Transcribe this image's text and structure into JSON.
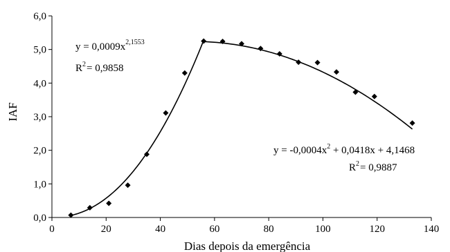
{
  "chart_data": {
    "type": "scatter",
    "xlabel": "Dias depois da emergência",
    "ylabel": "IAF",
    "xlim": [
      0,
      140
    ],
    "ylim": [
      0,
      6
    ],
    "x_ticks": [
      "0",
      "20",
      "40",
      "60",
      "80",
      "100",
      "120",
      "140"
    ],
    "y_ticks": [
      "0,0",
      "1,0",
      "2,0",
      "3,0",
      "4,0",
      "5,0",
      "6,0"
    ],
    "grid": false,
    "legend": "none",
    "points": [
      {
        "x": 7,
        "y": 0.07
      },
      {
        "x": 14,
        "y": 0.29
      },
      {
        "x": 21,
        "y": 0.42
      },
      {
        "x": 28,
        "y": 0.96
      },
      {
        "x": 35,
        "y": 1.88
      },
      {
        "x": 42,
        "y": 3.11
      },
      {
        "x": 49,
        "y": 4.3
      },
      {
        "x": 56,
        "y": 5.25
      },
      {
        "x": 63,
        "y": 5.24
      },
      {
        "x": 70,
        "y": 5.17
      },
      {
        "x": 77,
        "y": 5.03
      },
      {
        "x": 84,
        "y": 4.87
      },
      {
        "x": 91,
        "y": 4.62
      },
      {
        "x": 98,
        "y": 4.61
      },
      {
        "x": 105,
        "y": 4.33
      },
      {
        "x": 112,
        "y": 3.73
      },
      {
        "x": 119,
        "y": 3.6
      },
      {
        "x": 133,
        "y": 2.81
      }
    ],
    "fits": [
      {
        "kind": "power",
        "a": 0.0009,
        "b": 2.1553,
        "x_range": [
          7,
          56
        ],
        "equation_base": "y = 0,0009x",
        "equation_exp": "2,1553",
        "r2_prefix": "R",
        "r2_exp": "2",
        "r2_value": "= 0,9858"
      },
      {
        "kind": "quadratic",
        "coefficients": [
          -0.0004,
          0.0418,
          4.1468
        ],
        "x_range": [
          56,
          133
        ],
        "equation_part1": "y = -0,0004x",
        "equation_exp": "2",
        "equation_part2": " + 0,0418x + 4,1468",
        "r2_prefix": "R",
        "r2_exp": "2",
        "r2_value": "= 0,9887"
      }
    ]
  }
}
